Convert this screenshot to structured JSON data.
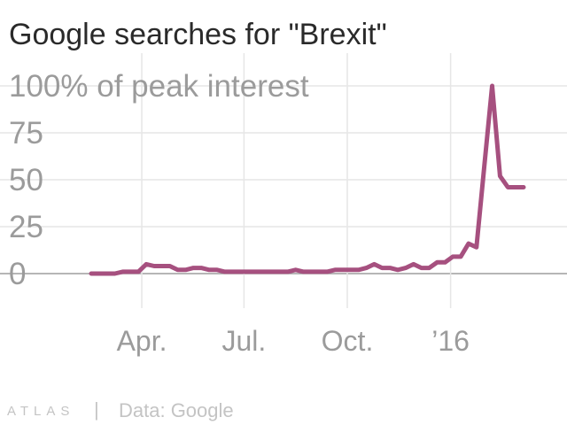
{
  "chart_data": {
    "type": "line",
    "title": "Google searches for \"Brexit\"",
    "ylabel": "",
    "xlabel": "",
    "ylim": [
      0,
      100
    ],
    "y_ticks": [
      0,
      25,
      50,
      75,
      100
    ],
    "y_tick_labels": [
      "0",
      "25",
      "50",
      "75",
      "100% of peak interest"
    ],
    "x_ticks": [
      {
        "label": "Apr.",
        "date": "2015-04-01"
      },
      {
        "label": "Jul.",
        "date": "2015-07-01"
      },
      {
        "label": "Oct.",
        "date": "2015-10-01"
      },
      {
        "label": "’16",
        "date": "2016-01-01"
      }
    ],
    "xlim": [
      "2015-02-05",
      "2016-03-12"
    ],
    "grid": true,
    "color": "#a6507f",
    "series": [
      {
        "x": [
          "2015-02-15",
          "2015-02-22",
          "2015-03-01",
          "2015-03-08",
          "2015-03-15",
          "2015-03-22",
          "2015-03-29",
          "2015-04-05",
          "2015-04-12",
          "2015-04-19",
          "2015-04-26",
          "2015-05-03",
          "2015-05-10",
          "2015-05-17",
          "2015-05-24",
          "2015-05-31",
          "2015-06-07",
          "2015-06-14",
          "2015-06-21",
          "2015-06-28",
          "2015-07-05",
          "2015-07-12",
          "2015-07-19",
          "2015-07-26",
          "2015-08-02",
          "2015-08-09",
          "2015-08-16",
          "2015-08-23",
          "2015-08-30",
          "2015-09-06",
          "2015-09-13",
          "2015-09-20",
          "2015-09-27",
          "2015-10-04",
          "2015-10-11",
          "2015-10-18",
          "2015-10-25",
          "2015-11-01",
          "2015-11-08",
          "2015-11-15",
          "2015-11-22",
          "2015-11-29",
          "2015-12-06",
          "2015-12-13",
          "2015-12-20",
          "2015-12-27",
          "2016-01-03",
          "2016-01-10",
          "2016-01-17",
          "2016-01-24",
          "2016-01-31",
          "2016-02-07",
          "2016-02-14",
          "2016-02-21",
          "2016-02-28",
          "2016-03-06"
        ],
        "values": [
          0,
          0,
          0,
          0,
          1,
          1,
          1,
          5,
          4,
          4,
          4,
          2,
          2,
          3,
          3,
          2,
          2,
          1,
          1,
          1,
          1,
          1,
          1,
          1,
          1,
          1,
          2,
          1,
          1,
          1,
          1,
          2,
          2,
          2,
          2,
          3,
          5,
          3,
          3,
          2,
          3,
          5,
          3,
          3,
          6,
          6,
          9,
          9,
          16,
          14,
          57,
          100,
          52,
          46,
          46,
          46
        ]
      }
    ]
  },
  "footer": {
    "brand": "ATLAS",
    "separator": "|",
    "source": "Data: Google"
  }
}
